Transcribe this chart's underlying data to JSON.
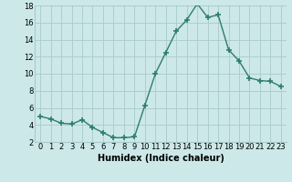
{
  "x": [
    0,
    1,
    2,
    3,
    4,
    5,
    6,
    7,
    8,
    9,
    10,
    11,
    12,
    13,
    14,
    15,
    16,
    17,
    18,
    19,
    20,
    21,
    22,
    23
  ],
  "y": [
    5.0,
    4.7,
    4.2,
    4.1,
    4.6,
    3.7,
    3.1,
    2.5,
    2.5,
    2.6,
    6.3,
    10.0,
    12.5,
    15.0,
    16.3,
    18.2,
    16.6,
    16.9,
    12.8,
    11.5,
    9.5,
    9.2,
    9.1,
    8.5
  ],
  "line_color": "#2e7d6e",
  "marker": "+",
  "marker_size": 4,
  "bg_color": "#cce8e8",
  "grid_color": "#aacaca",
  "xlabel": "Humidex (Indice chaleur)",
  "ylim": [
    2,
    18
  ],
  "yticks": [
    2,
    4,
    6,
    8,
    10,
    12,
    14,
    16,
    18
  ],
  "xticks": [
    0,
    1,
    2,
    3,
    4,
    5,
    6,
    7,
    8,
    9,
    10,
    11,
    12,
    13,
    14,
    15,
    16,
    17,
    18,
    19,
    20,
    21,
    22,
    23
  ],
  "xlabel_fontsize": 7,
  "tick_fontsize": 6,
  "line_width": 1.0
}
